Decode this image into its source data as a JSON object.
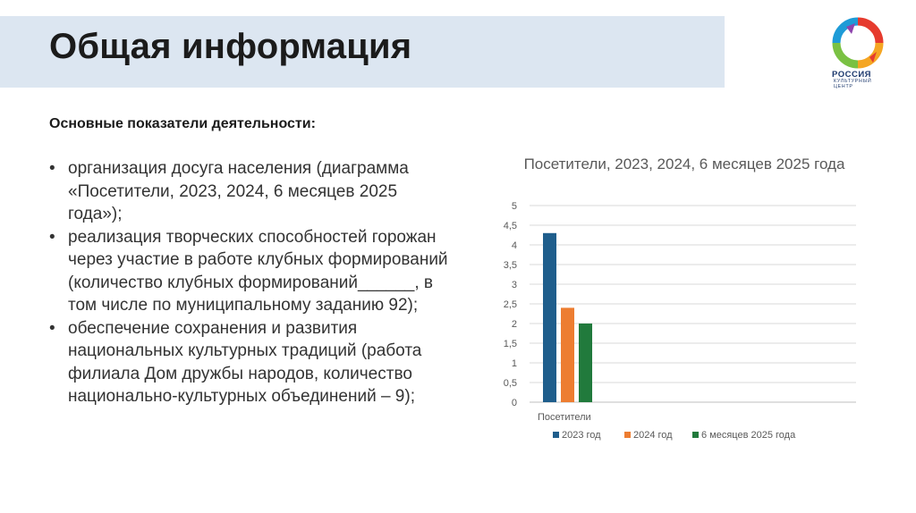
{
  "slide": {
    "title": "Общая информация",
    "subheading": "Основные показатели деятельности:",
    "bullet_marker": "•",
    "bullets": [
      "организация досуга населения (диаграмма «Посетители, 2023, 2024, 6 месяцев 2025 года»);",
      "реализация творческих способностей горожан через участие в работе клубных формирований (количество клубных формирований______, в том числе по муниципальному заданию 92);",
      "обеспечение сохранения и развития национальных культурных традиций (работа филиала Дом дружбы народов, количество национально-культурных объединений – 9);"
    ]
  },
  "logo": {
    "name": "logo-rossiya-cultural-center",
    "brand": "РОССИЯ",
    "subtitle": "КУЛЬТУРНЫЙ ЦЕНТР",
    "colors": [
      "#e63b2e",
      "#f5a623",
      "#7ac143",
      "#1e9bd7",
      "#8e44ad"
    ]
  },
  "chart_data": {
    "type": "bar",
    "title": "Посетители, 2023, 2024, 6 месяцев 2025 года",
    "categories": [
      "Посетители"
    ],
    "series": [
      {
        "name": "2023 год",
        "values": [
          4.3
        ],
        "color": "#1f5e8c"
      },
      {
        "name": "2024 год",
        "values": [
          2.4
        ],
        "color": "#ed7d31"
      },
      {
        "name": "6 месяцев 2025 года",
        "values": [
          2.0
        ],
        "color": "#217a3c"
      }
    ],
    "ylim": [
      0,
      5
    ],
    "yticks": [
      "0",
      "0,5",
      "1",
      "1,5",
      "2",
      "2,5",
      "3",
      "3,5",
      "4",
      "4,5",
      "5"
    ],
    "grid": true,
    "legend": "bottom"
  }
}
